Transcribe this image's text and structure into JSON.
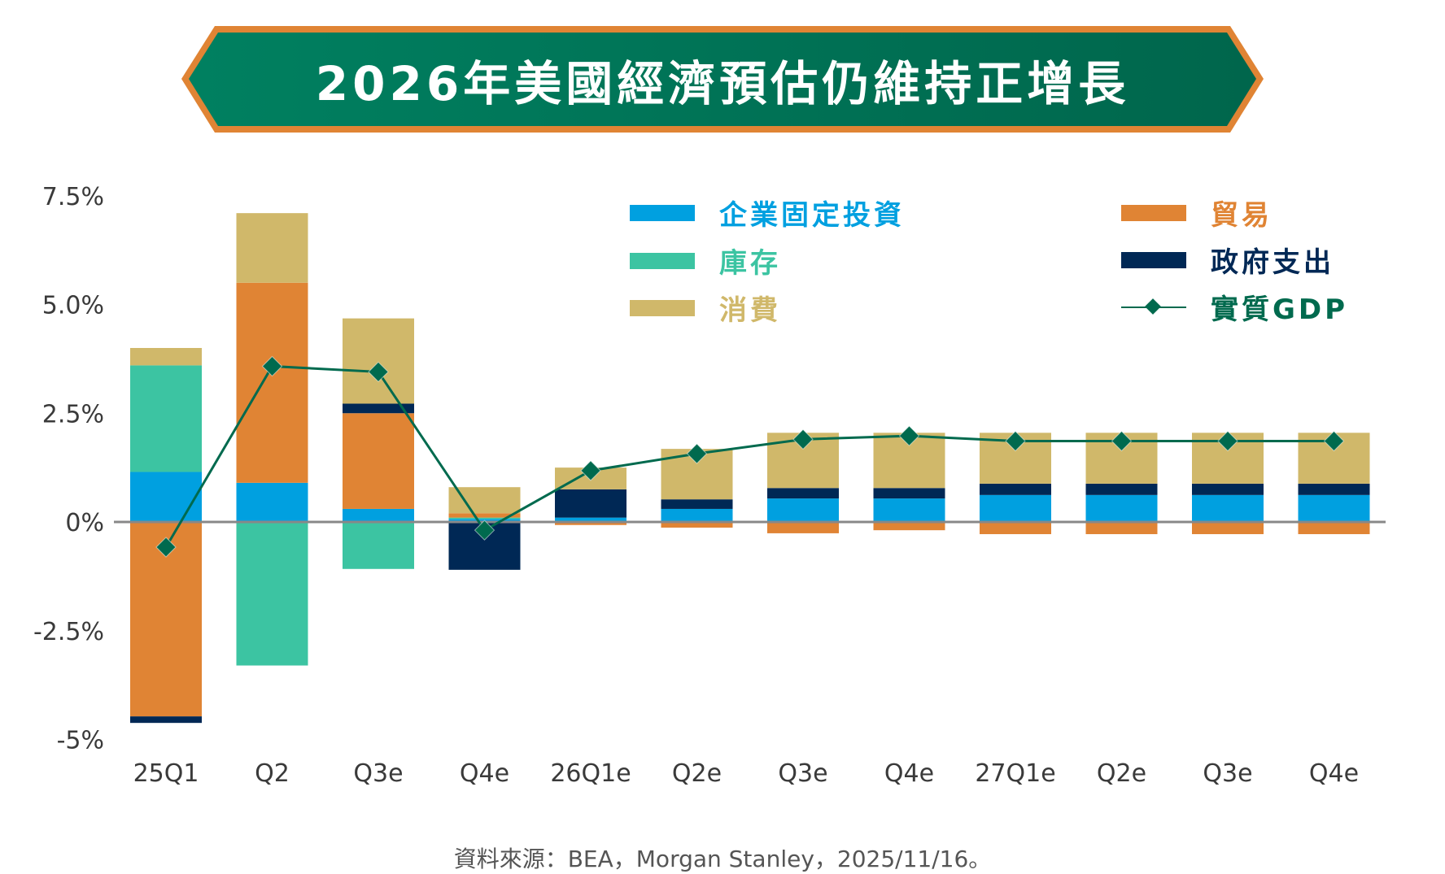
{
  "title": "2026年美國經濟預估仍維持正增長",
  "source": "資料來源：BEA，Morgan Stanley，2025/11/16。",
  "colors": {
    "banner_fill_left": "#008060",
    "banner_fill_right": "#00664c",
    "banner_border": "#e08434",
    "business_investment": "#00a0e0",
    "inventory": "#3cc4a2",
    "consumption": "#d0b86a",
    "trade": "#e08434",
    "government": "#002855",
    "gdp": "#006a4e",
    "zero_line": "#888888"
  },
  "legend": [
    {
      "key": "business_investment",
      "label": "企業固定投資",
      "color": "#00a0e0",
      "marker": "swatch"
    },
    {
      "key": "inventory",
      "label": "庫存",
      "color": "#3cc4a2",
      "marker": "swatch"
    },
    {
      "key": "consumption",
      "label": "消費",
      "color": "#d0b86a",
      "marker": "swatch"
    },
    {
      "key": "trade",
      "label": "貿易",
      "color": "#e08434",
      "marker": "swatch"
    },
    {
      "key": "government",
      "label": "政府支出",
      "color": "#002855",
      "marker": "swatch"
    },
    {
      "key": "gdp",
      "label": "實質GDP",
      "color": "#006a4e",
      "marker": "line-diamond"
    }
  ],
  "chart_data": {
    "type": "bar",
    "subtype": "stacked bar with line overlay",
    "title": "2026年美國經濟預估仍維持正增長",
    "xlabel": "",
    "ylabel": "",
    "ylim": [
      -5,
      7.5
    ],
    "yticks": [
      7.5,
      5.0,
      2.5,
      0,
      -2.5,
      -5
    ],
    "ytick_labels": [
      "7.5%",
      "5.0%",
      "2.5%",
      "0%",
      "-2.5%",
      "-5%"
    ],
    "grid": false,
    "legend_position": "top-right",
    "categories": [
      "25Q1",
      "Q2",
      "Q3e",
      "Q4e",
      "26Q1e",
      "Q2e",
      "Q3e",
      "Q4e",
      "27Q1e",
      "Q2e",
      "Q3e",
      "Q4e"
    ],
    "series": [
      {
        "name": "企業固定投資",
        "key": "business_investment",
        "type": "bar",
        "values": [
          1.15,
          0.9,
          0.3,
          0.07,
          0.1,
          0.3,
          0.54,
          0.54,
          0.62,
          0.62,
          0.62,
          0.62
        ]
      },
      {
        "name": "庫存",
        "key": "inventory",
        "type": "bar",
        "values": [
          2.45,
          -3.3,
          -1.08,
          0.03,
          0,
          0,
          0,
          0,
          0,
          0,
          0,
          0
        ]
      },
      {
        "name": "貿易",
        "key": "trade",
        "type": "bar",
        "values": [
          -4.47,
          4.6,
          2.2,
          0.1,
          -0.07,
          -0.13,
          -0.26,
          -0.19,
          -0.28,
          -0.28,
          -0.28,
          -0.28
        ]
      },
      {
        "name": "政府支出",
        "key": "government",
        "type": "bar",
        "values": [
          -0.15,
          0,
          0.22,
          -1.1,
          0.65,
          0.22,
          0.24,
          0.24,
          0.26,
          0.26,
          0.26,
          0.26
        ]
      },
      {
        "name": "消費",
        "key": "consumption",
        "type": "bar",
        "values": [
          0.4,
          1.6,
          1.96,
          0.6,
          0.5,
          1.16,
          1.27,
          1.27,
          1.17,
          1.17,
          1.17,
          1.17
        ]
      },
      {
        "name": "實質GDP",
        "key": "gdp",
        "type": "line",
        "values": [
          -0.58,
          3.58,
          3.45,
          -0.19,
          1.18,
          1.57,
          1.9,
          1.98,
          1.86,
          1.86,
          1.86,
          1.86
        ]
      }
    ]
  }
}
